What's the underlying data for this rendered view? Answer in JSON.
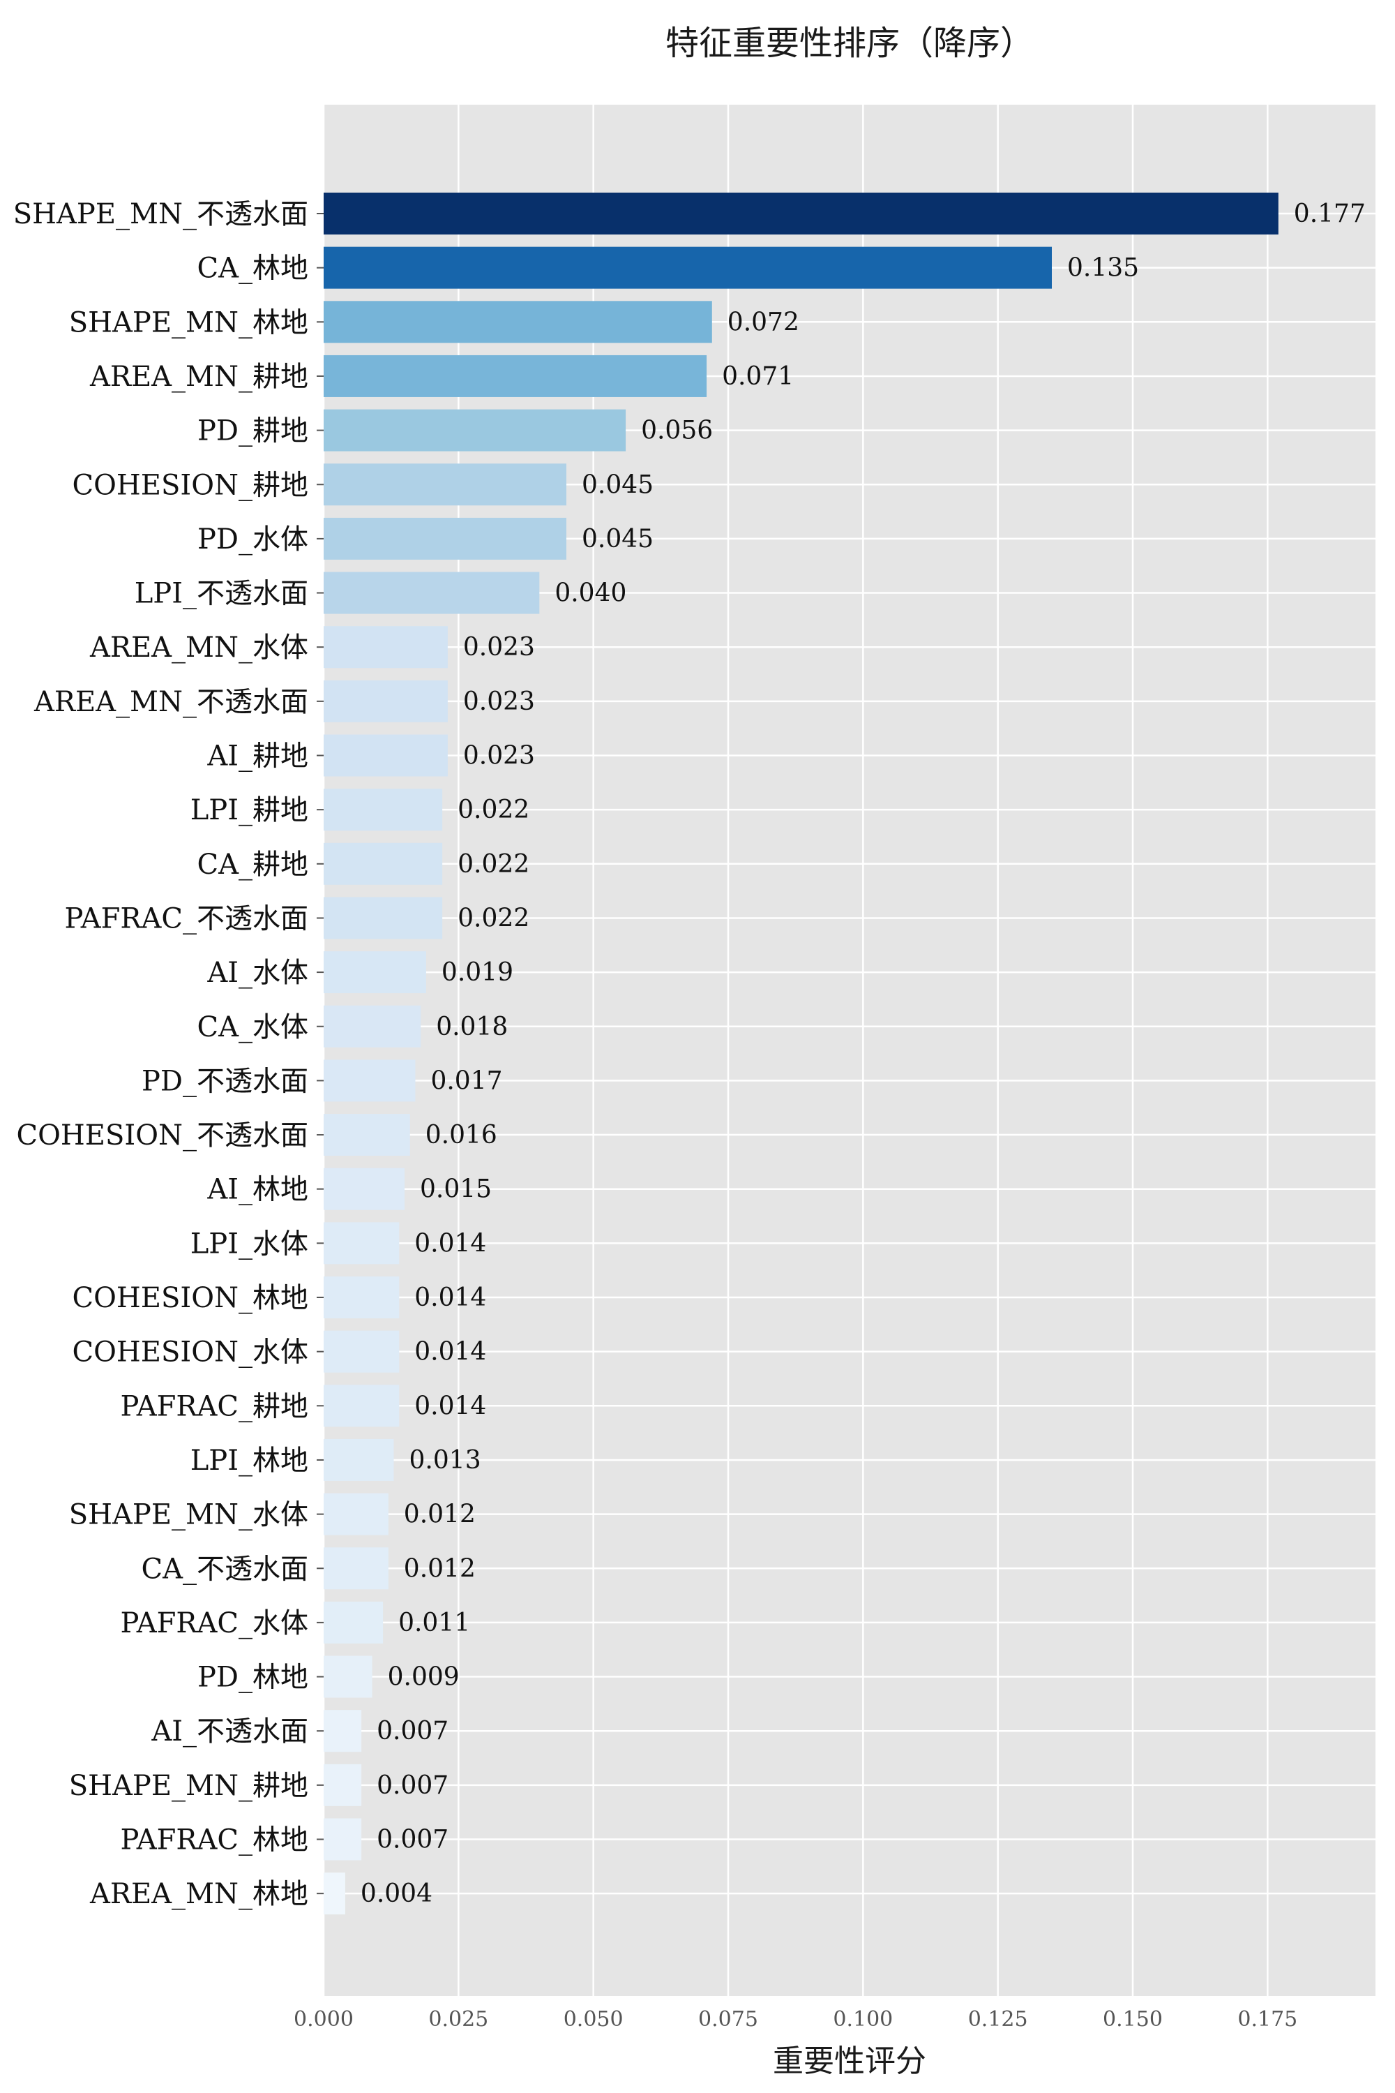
{
  "chart_data": {
    "type": "bar",
    "orientation": "horizontal",
    "title": "特征重要性排序（降序）",
    "xlabel": "重要性评分",
    "ylabel": "",
    "xlim": [
      0,
      0.195
    ],
    "xticks": [
      "0.000",
      "0.025",
      "0.050",
      "0.075",
      "0.100",
      "0.125",
      "0.150",
      "0.175"
    ],
    "grid": true,
    "colormap": "Blues",
    "categories": [
      "SHAPE_MN_不透水面",
      "CA_林地",
      "SHAPE_MN_林地",
      "AREA_MN_耕地",
      "PD_耕地",
      "COHESION_耕地",
      "PD_水体",
      "LPI_不透水面",
      "AREA_MN_水体",
      "AREA_MN_不透水面",
      "AI_耕地",
      "LPI_耕地",
      "CA_耕地",
      "PAFRAC_不透水面",
      "AI_水体",
      "CA_水体",
      "PD_不透水面",
      "COHESION_不透水面",
      "AI_林地",
      "LPI_水体",
      "COHESION_林地",
      "COHESION_水体",
      "PAFRAC_耕地",
      "LPI_林地",
      "SHAPE_MN_水体",
      "CA_不透水面",
      "PAFRAC_水体",
      "PD_林地",
      "AI_不透水面",
      "SHAPE_MN_耕地",
      "PAFRAC_林地",
      "AREA_MN_林地"
    ],
    "values": [
      0.177,
      0.135,
      0.072,
      0.071,
      0.056,
      0.045,
      0.045,
      0.04,
      0.023,
      0.023,
      0.023,
      0.022,
      0.022,
      0.022,
      0.019,
      0.018,
      0.017,
      0.016,
      0.015,
      0.014,
      0.014,
      0.014,
      0.014,
      0.013,
      0.012,
      0.012,
      0.011,
      0.009,
      0.007,
      0.007,
      0.007,
      0.004
    ],
    "value_labels": [
      "0.177",
      "0.135",
      "0.072",
      "0.071",
      "0.056",
      "0.045",
      "0.045",
      "0.040",
      "0.023",
      "0.023",
      "0.023",
      "0.022",
      "0.022",
      "0.022",
      "0.019",
      "0.018",
      "0.017",
      "0.016",
      "0.015",
      "0.014",
      "0.014",
      "0.014",
      "0.014",
      "0.013",
      "0.012",
      "0.012",
      "0.011",
      "0.009",
      "0.007",
      "0.007",
      "0.007",
      "0.004"
    ]
  }
}
